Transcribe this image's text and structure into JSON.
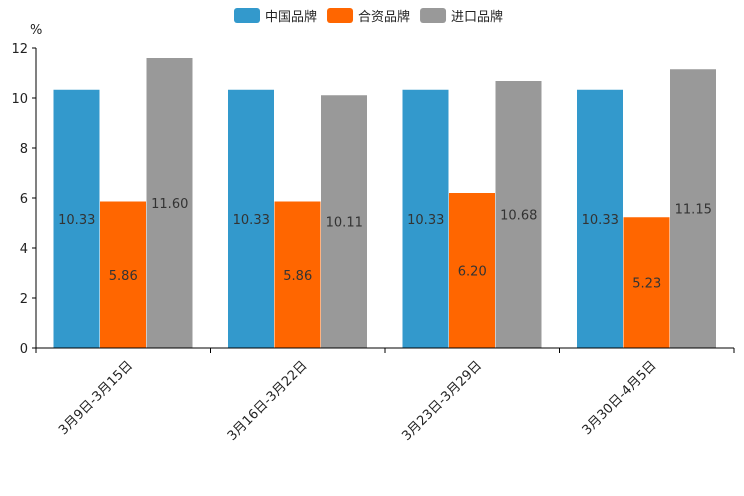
{
  "chart_data": {
    "type": "bar",
    "ylabel": "%",
    "ylim": [
      0,
      12
    ],
    "yticks": [
      0,
      2,
      4,
      6,
      8,
      10,
      12
    ],
    "categories": [
      "3月9日-3月15日",
      "3月16日-3月22日",
      "3月23日-3月29日",
      "3月30日-4月5日"
    ],
    "series": [
      {
        "name": "中国品牌",
        "color": "#3399CC",
        "values": [
          10.33,
          10.33,
          10.33,
          10.33
        ]
      },
      {
        "name": "合资品牌",
        "color": "#FF6600",
        "values": [
          5.86,
          5.86,
          6.2,
          5.23
        ]
      },
      {
        "name": "进口品牌",
        "color": "#999999",
        "values": [
          11.6,
          10.11,
          10.68,
          11.15
        ]
      }
    ],
    "legend_position": "top"
  }
}
